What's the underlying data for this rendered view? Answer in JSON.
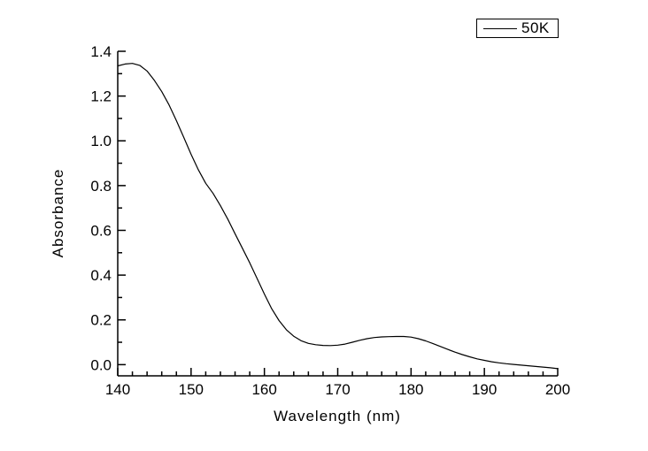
{
  "colors": {
    "background": "#ffffff",
    "axis": "#000000",
    "text": "#000000",
    "line": "#000000"
  },
  "chart_data": {
    "type": "line",
    "title": "",
    "xlabel": "Wavelength (nm)",
    "ylabel": "Absorbance",
    "xlim": [
      140,
      200
    ],
    "ylim": [
      -0.05,
      1.4
    ],
    "x_major_ticks": [
      140,
      150,
      160,
      170,
      180,
      190,
      200
    ],
    "x_minor_step": 2,
    "y_major_ticks": [
      0.0,
      0.2,
      0.4,
      0.6,
      0.8,
      1.0,
      1.2,
      1.4
    ],
    "y_minor_step": 0.1,
    "grid": false,
    "legend_position": "top-right",
    "legend_border": true,
    "series": [
      {
        "name": "50K",
        "color": "#000000",
        "x": [
          140,
          141,
          142,
          143,
          144,
          145,
          146,
          147,
          148,
          149,
          150,
          151,
          152,
          153,
          154,
          155,
          156,
          157,
          158,
          159,
          160,
          161,
          162,
          163,
          164,
          165,
          166,
          167,
          168,
          169,
          170,
          171,
          172,
          173,
          174,
          175,
          176,
          177,
          178,
          179,
          180,
          181,
          182,
          183,
          184,
          185,
          186,
          187,
          188,
          189,
          190,
          191,
          192,
          193,
          194,
          195,
          196,
          197,
          198,
          199,
          200
        ],
        "y": [
          1.335,
          1.343,
          1.346,
          1.337,
          1.312,
          1.27,
          1.22,
          1.16,
          1.09,
          1.015,
          0.94,
          0.87,
          0.81,
          0.765,
          0.71,
          0.65,
          0.585,
          0.52,
          0.455,
          0.385,
          0.315,
          0.25,
          0.197,
          0.156,
          0.127,
          0.107,
          0.095,
          0.089,
          0.086,
          0.085,
          0.087,
          0.092,
          0.1,
          0.109,
          0.116,
          0.121,
          0.124,
          0.125,
          0.126,
          0.126,
          0.123,
          0.116,
          0.106,
          0.094,
          0.081,
          0.068,
          0.056,
          0.045,
          0.035,
          0.026,
          0.019,
          0.013,
          0.008,
          0.004,
          0.001,
          -0.002,
          -0.005,
          -0.008,
          -0.011,
          -0.014,
          -0.018
        ]
      }
    ]
  }
}
